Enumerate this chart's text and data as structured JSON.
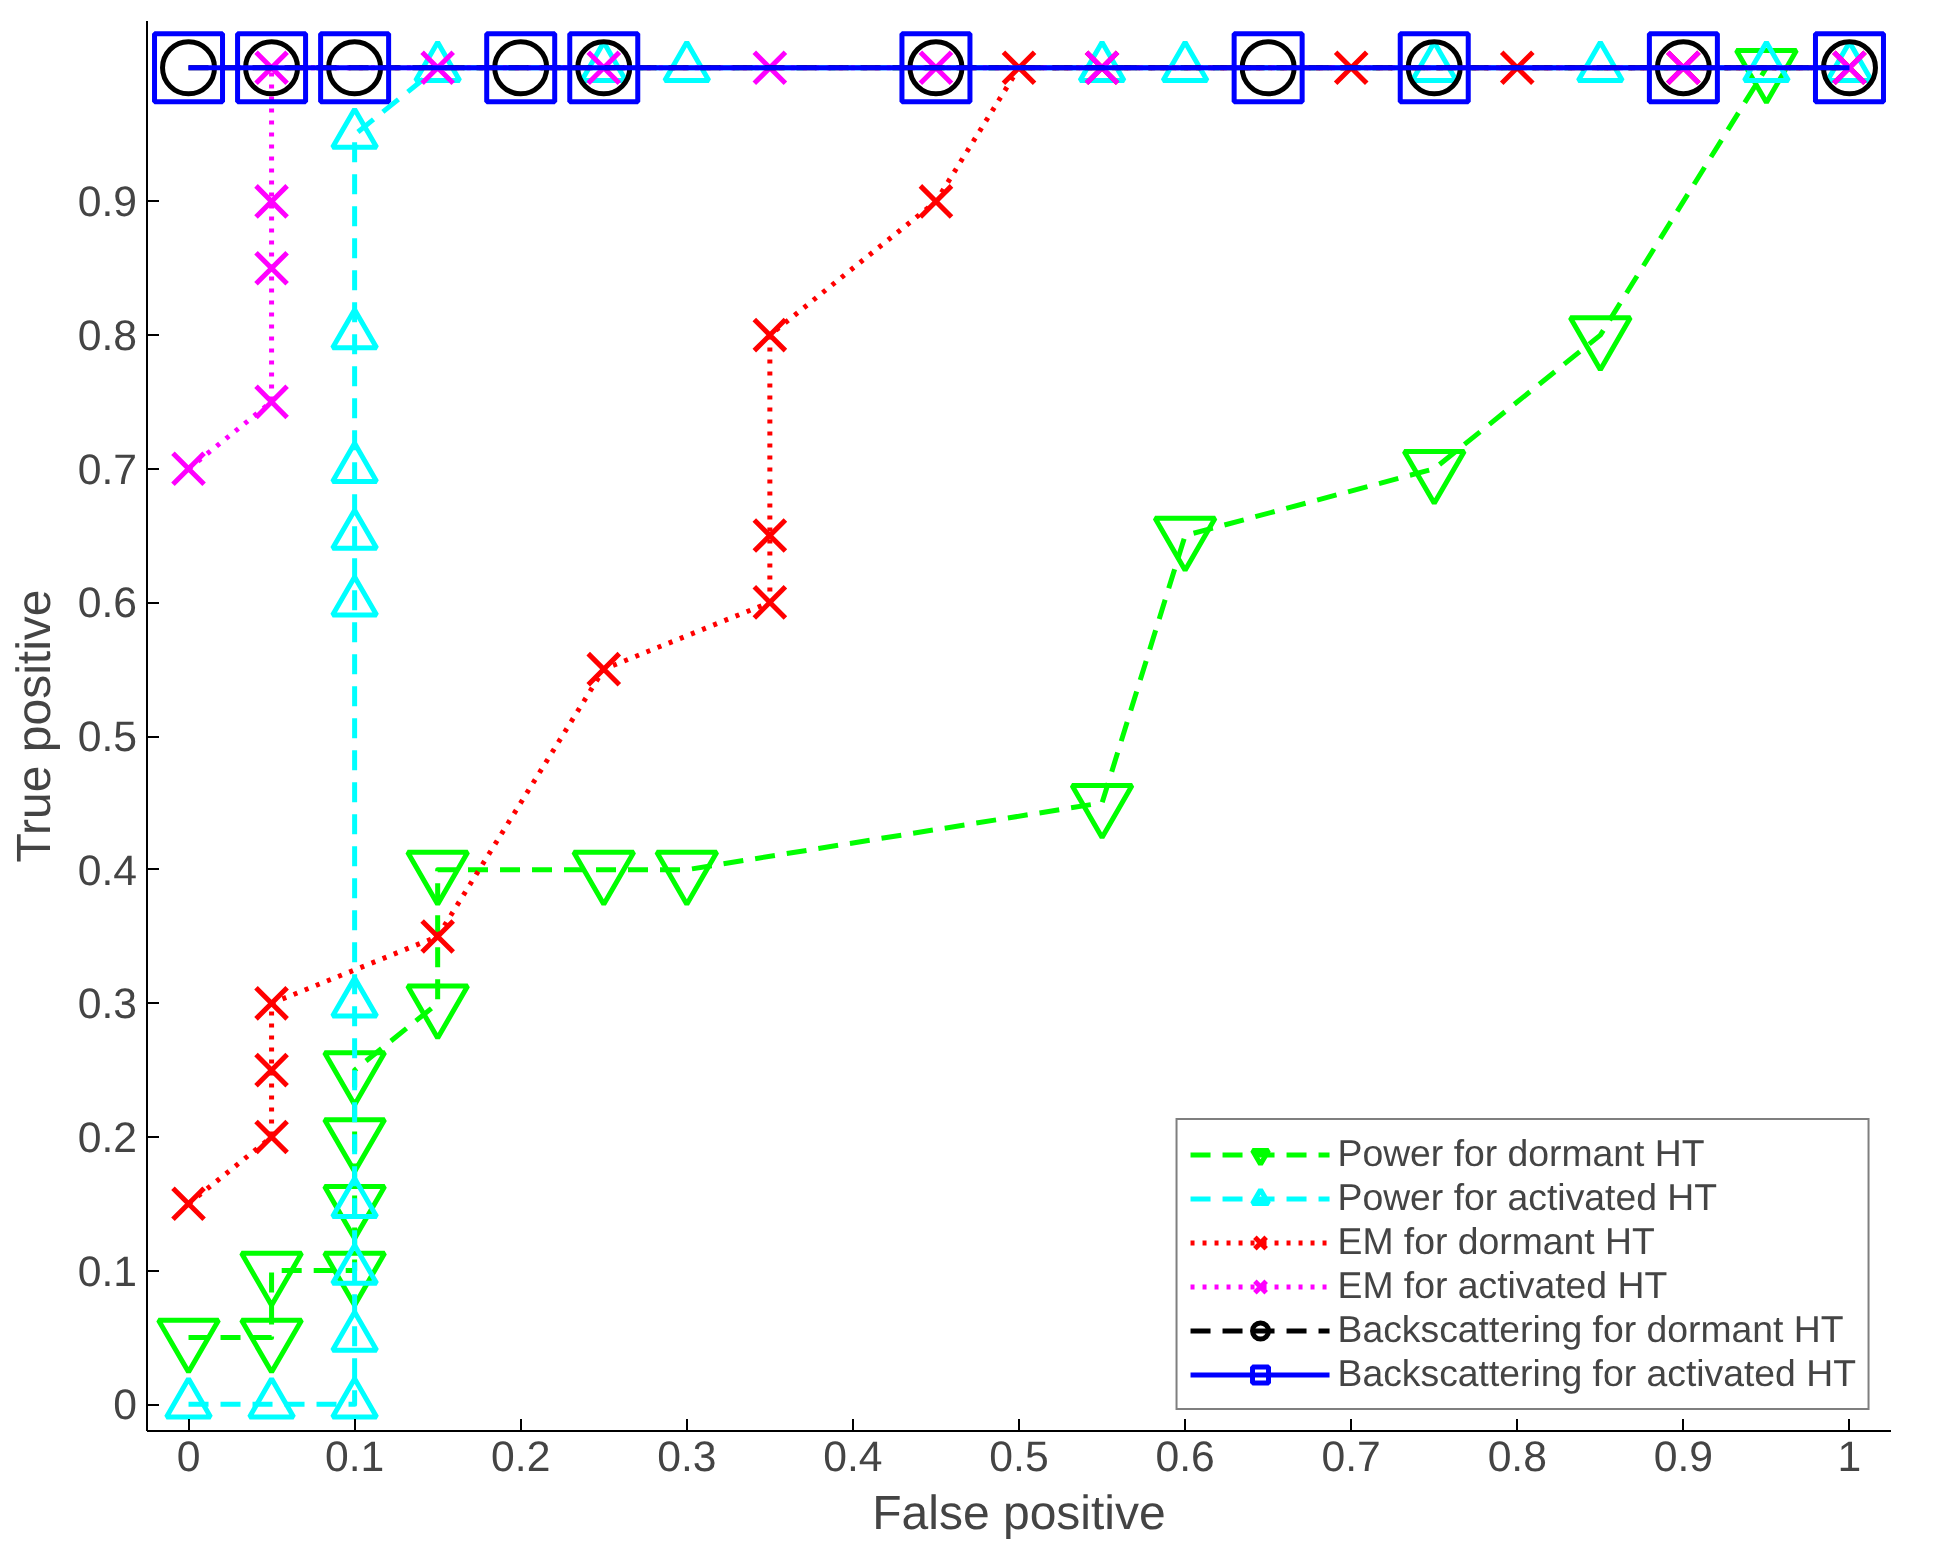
{
  "chart_data": {
    "type": "line",
    "xlabel": "False positive",
    "ylabel": "True positive",
    "xlim": [
      -0.025,
      1.025
    ],
    "ylim": [
      -0.02,
      1.035
    ],
    "xticks": [
      0,
      0.1,
      0.2,
      0.3,
      0.4,
      0.5,
      0.6,
      0.7,
      0.8,
      0.9,
      1
    ],
    "yticks": [
      0,
      0.1,
      0.2,
      0.3,
      0.4,
      0.5,
      0.6,
      0.7,
      0.8,
      0.9
    ],
    "grid": false,
    "legend": "bottom right",
    "series": [
      {
        "name": "Power for dormant HT",
        "color": "#00ff00",
        "marker": "triangle_down",
        "line_style": "dashed",
        "x": [
          0,
          0.05,
          0.05,
          0.1,
          0.1,
          0.1,
          0.1,
          0.15,
          0.15,
          0.25,
          0.3,
          0.55,
          0.6,
          0.75,
          0.85,
          0.95
        ],
        "values": [
          0.05,
          0.05,
          0.1,
          0.1,
          0.15,
          0.2,
          0.25,
          0.3,
          0.4,
          0.4,
          0.4,
          0.45,
          0.65,
          0.7,
          0.8,
          1
        ]
      },
      {
        "name": "Power for activated HT",
        "color": "#00ffff",
        "marker": "triangle",
        "line_style": "dashed",
        "x": [
          0,
          0.05,
          0.1,
          0.1,
          0.1,
          0.1,
          0.1,
          0.1,
          0.1,
          0.1,
          0.1,
          0.1,
          0.15,
          0.25,
          0.3,
          0.55,
          0.6,
          0.75,
          0.85,
          0.95,
          1
        ],
        "values": [
          0,
          0,
          0,
          0.05,
          0.1,
          0.15,
          0.3,
          0.6,
          0.65,
          0.7,
          0.8,
          0.95,
          1,
          1,
          1,
          1,
          1,
          1,
          1,
          1,
          1
        ]
      },
      {
        "name": "EM for dormant HT",
        "color": "#ff0000",
        "marker": "cross",
        "line_style": "dotted",
        "x": [
          0,
          0.05,
          0.05,
          0.05,
          0.15,
          0.25,
          0.35,
          0.35,
          0.35,
          0.45,
          0.5,
          0.55,
          0.7,
          0.8,
          0.9,
          1
        ],
        "values": [
          0.15,
          0.2,
          0.25,
          0.3,
          0.35,
          0.55,
          0.6,
          0.65,
          0.8,
          0.9,
          1,
          1,
          1,
          1,
          1,
          1
        ]
      },
      {
        "name": "EM for activated HT",
        "color": "#ff00ff",
        "marker": "cross",
        "line_style": "dotted",
        "x": [
          0,
          0.05,
          0.05,
          0.05,
          0.05,
          0.15,
          0.25,
          0.35,
          0.45,
          0.55,
          0.9,
          1
        ],
        "values": [
          0.7,
          0.75,
          0.85,
          0.9,
          1,
          1,
          1,
          1,
          1,
          1,
          1,
          1
        ]
      },
      {
        "name": "Backscattering for dormant HT",
        "color": "#000000",
        "marker": "circle",
        "line_style": "dashed",
        "x": [
          0,
          0.05,
          0.1,
          0.2,
          0.25,
          0.45,
          0.65,
          0.75,
          0.9,
          1
        ],
        "values": [
          1,
          1,
          1,
          1,
          1,
          1,
          1,
          1,
          1,
          1
        ]
      },
      {
        "name": "Backscattering for activated HT",
        "color": "#0000ff",
        "marker": "square",
        "line_style": "solid",
        "x": [
          0,
          0.05,
          0.1,
          0.2,
          0.25,
          0.45,
          0.65,
          0.75,
          0.9,
          1
        ],
        "values": [
          1,
          1,
          1,
          1,
          1,
          1,
          1,
          1,
          1,
          1
        ]
      }
    ]
  }
}
